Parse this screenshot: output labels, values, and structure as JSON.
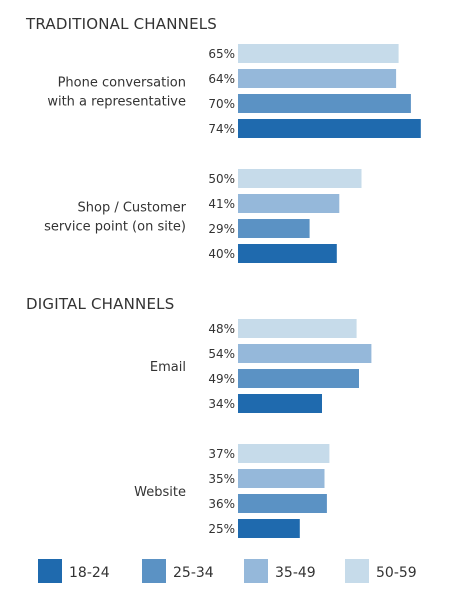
{
  "chart_data": {
    "type": "bar",
    "orientation": "horizontal",
    "value_unit": "%",
    "series_names": [
      "18-24",
      "25-34",
      "35-49",
      "50-59"
    ],
    "series_colors": [
      "#1f6aae",
      "#5b92c4",
      "#95b8da",
      "#c6dbea"
    ],
    "legend_position": "bottom",
    "grid": false,
    "sections": [
      {
        "title": "TRADITIONAL CHANNELS",
        "categories": [
          {
            "label_lines": [
              "Phone conversation",
              "with a representative"
            ],
            "values": {
              "50-59": 65,
              "35-49": 64,
              "25-34": 70,
              "18-24": 74
            }
          },
          {
            "label_lines": [
              "Shop / Customer",
              "service point (on site)"
            ],
            "values": {
              "50-59": 50,
              "35-49": 41,
              "25-34": 29,
              "18-24": 40
            }
          }
        ]
      },
      {
        "title": "DIGITAL CHANNELS",
        "categories": [
          {
            "label_lines": [
              "Email"
            ],
            "values": {
              "50-59": 48,
              "35-49": 54,
              "25-34": 49,
              "18-24": 34
            }
          },
          {
            "label_lines": [
              "Website"
            ],
            "values": {
              "50-59": 37,
              "35-49": 35,
              "25-34": 36,
              "18-24": 25
            }
          }
        ]
      }
    ]
  }
}
